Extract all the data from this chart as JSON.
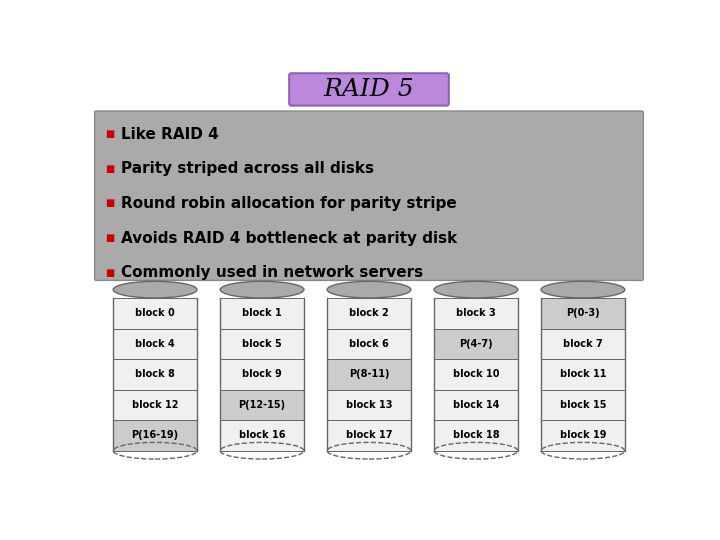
{
  "title": "RAID 5",
  "title_bg_top": "#cc99ee",
  "title_bg_bot": "#9955cc",
  "title_border": "#9060b0",
  "bullet_color": "#cc0000",
  "bullets": [
    "Like RAID 4",
    "Parity striped across all disks",
    "Round robin allocation for parity stripe",
    "Avoids RAID 4 bottleneck at parity disk",
    "Commonly used in network servers"
  ],
  "bullet_box_bg": "#aaaaaa",
  "background": "#ffffff",
  "disks": [
    [
      "block 0",
      "block 4",
      "block 8",
      "block 12",
      "P(16-19)"
    ],
    [
      "block 1",
      "block 5",
      "block 9",
      "P(12-15)",
      "block 16"
    ],
    [
      "block 2",
      "block 6",
      "P(8-11)",
      "block 13",
      "block 17"
    ],
    [
      "block 3",
      "P(4-7)",
      "block 10",
      "block 14",
      "block 18"
    ],
    [
      "P(0-3)",
      "block 7",
      "block 11",
      "block 15",
      "block 19"
    ]
  ],
  "parity_blocks": [
    "P(16-19)",
    "P(12-15)",
    "P(8-11)",
    "P(4-7)",
    "P(0-3)"
  ],
  "cylinder_body_color": "#f0f0f0",
  "cylinder_top_color": "#aaaaaa",
  "parity_color": "#cccccc",
  "block_border": "#666666",
  "text_font_size": 7,
  "title_font_size": 18,
  "bullet_font_size": 11
}
